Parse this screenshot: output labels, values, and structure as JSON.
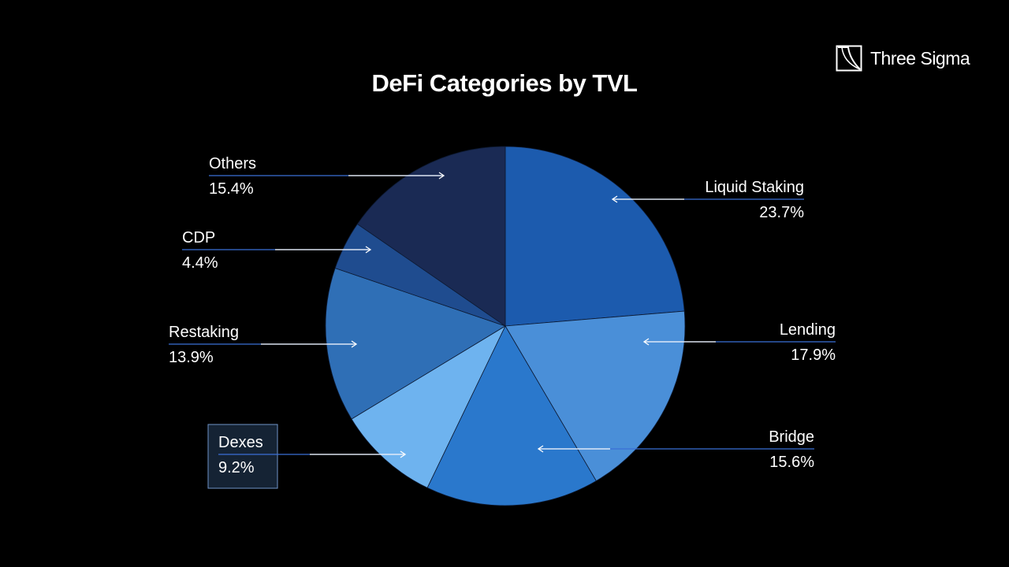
{
  "brand": {
    "name": "Three Sigma",
    "logo_icon": "three-sigma-logo-icon"
  },
  "chart_data": {
    "type": "pie",
    "title": "DeFi Categories by TVL",
    "legend": "none",
    "slices": [
      {
        "label": "Liquid Staking",
        "value": 23.7,
        "display": "23.7%",
        "color": "#1c5bae",
        "side": "right"
      },
      {
        "label": "Lending",
        "value": 17.9,
        "display": "17.9%",
        "color": "#4a8fd8",
        "side": "right"
      },
      {
        "label": "Bridge",
        "value": 15.6,
        "display": "15.6%",
        "color": "#2a78cc",
        "side": "right"
      },
      {
        "label": "Dexes",
        "value": 9.2,
        "display": "9.2%",
        "color": "#6eb3ef",
        "side": "left",
        "highlighted": true
      },
      {
        "label": "Restaking",
        "value": 13.9,
        "display": "13.9%",
        "color": "#2f6fb6",
        "side": "left"
      },
      {
        "label": "CDP",
        "value": 4.4,
        "display": "4.4%",
        "color": "#1f4c8f",
        "side": "left"
      },
      {
        "label": "Others",
        "value": 15.4,
        "display": "15.4%",
        "color": "#1a2a54",
        "side": "left"
      }
    ],
    "accent_line_color": "#3b6fd6"
  }
}
